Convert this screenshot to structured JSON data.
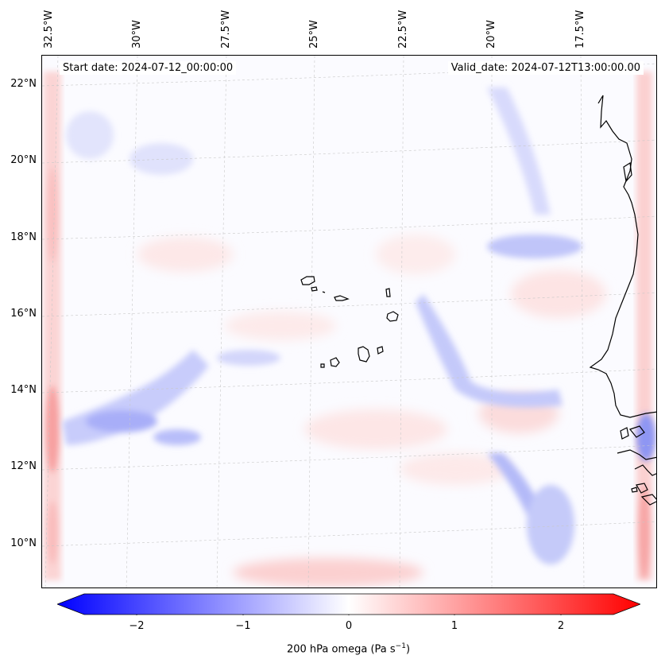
{
  "map": {
    "longitude_labels": [
      "32.5°W",
      "30°W",
      "27.5°W",
      "25°W",
      "22.5°W",
      "20°W",
      "17.5°W"
    ],
    "latitude_labels": [
      "22°N",
      "20°N",
      "18°N",
      "16°N",
      "14°N",
      "12°N",
      "10°N"
    ],
    "start_date": "Start date: 2024-07-12_00:00:00",
    "valid_date": "Valid_date: 2024-07-12T13:00:00.00"
  },
  "colorbar": {
    "ticks": [
      "−2",
      "−1",
      "0",
      "1",
      "2"
    ],
    "tick_values": [
      -2,
      -1,
      0,
      1,
      2
    ],
    "range": [
      -2.5,
      2.5
    ],
    "label_main": "200 hPa omega (Pa s",
    "label_exp": "−1",
    "label_close": ")",
    "colors": {
      "negative": "#0000ff",
      "zero": "#ffffff",
      "positive": "#ff0000"
    }
  }
}
